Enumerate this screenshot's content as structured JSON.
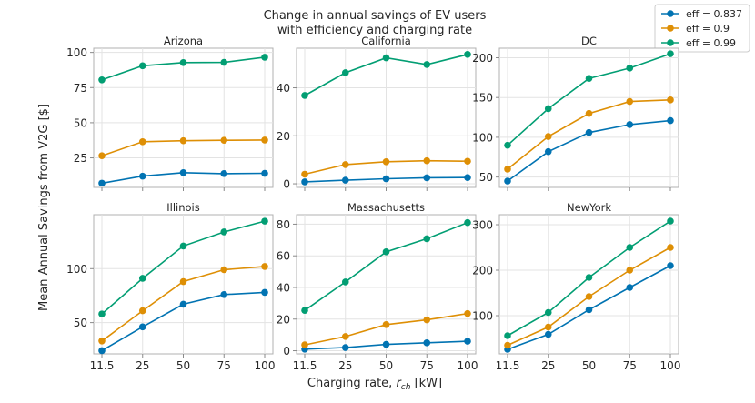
{
  "figure": {
    "title_line1": "Change in annual savings of EV users",
    "title_line2": "with efficiency and charging rate",
    "xlabel_prefix": "Charging rate, ",
    "xlabel_var": "r",
    "xlabel_sub": "ch",
    "xlabel_unit": " [kW]",
    "ylabel": "Mean Annual Savings from V2G [$]"
  },
  "chart_data": {
    "type": "line",
    "x_categories": [
      "11.5",
      "25",
      "50",
      "75",
      "100"
    ],
    "legend": [
      {
        "name": "eff = 0.837",
        "color": "#0173b2"
      },
      {
        "name": "eff = 0.9",
        "color": "#de8f05"
      },
      {
        "name": "eff = 0.99",
        "color": "#029e73"
      }
    ],
    "panels": [
      {
        "title": "Arizona",
        "ylim": [
          4,
          103
        ],
        "yticks": [
          25,
          50,
          75,
          100
        ],
        "series": [
          [
            7,
            12,
            14.5,
            13.8,
            14
          ],
          [
            26.5,
            36.5,
            37.2,
            37.5,
            37.7
          ],
          [
            80.5,
            90.5,
            92.8,
            92.9,
            96.6
          ]
        ]
      },
      {
        "title": "California",
        "ylim": [
          -1.5,
          56.5
        ],
        "yticks": [
          0,
          20,
          40
        ],
        "series": [
          [
            0.8,
            1.5,
            2.1,
            2.5,
            2.6
          ],
          [
            4,
            8,
            9.2,
            9.6,
            9.4
          ],
          [
            36.8,
            46.3,
            52.5,
            49.7,
            53.9
          ]
        ]
      },
      {
        "title": "DC",
        "ylim": [
          37,
          212
        ],
        "yticks": [
          50,
          100,
          150,
          200
        ],
        "series": [
          [
            45,
            82,
            106,
            116,
            121
          ],
          [
            60,
            101,
            130,
            145,
            147
          ],
          [
            90,
            136,
            174,
            187,
            205
          ]
        ]
      },
      {
        "title": "Illinois",
        "ylim": [
          21,
          150
        ],
        "yticks": [
          50,
          100
        ],
        "series": [
          [
            24,
            46,
            67,
            76,
            78
          ],
          [
            33,
            61,
            88,
            99,
            102
          ],
          [
            58,
            91,
            121,
            134,
            144
          ]
        ]
      },
      {
        "title": "Massachusetts",
        "ylim": [
          -2,
          86
        ],
        "yticks": [
          0,
          20,
          40,
          60,
          80
        ],
        "series": [
          [
            1,
            2,
            4,
            5,
            6
          ],
          [
            3.7,
            9,
            16.5,
            19.5,
            23.5
          ],
          [
            25.5,
            43.5,
            62.5,
            70.8,
            81
          ]
        ]
      },
      {
        "title": "NewYork",
        "ylim": [
          16,
          322
        ],
        "yticks": [
          100,
          200,
          300
        ],
        "series": [
          [
            26,
            59,
            113,
            162,
            210
          ],
          [
            35,
            75,
            142,
            200,
            250
          ],
          [
            56,
            107,
            184,
            250,
            308
          ]
        ]
      }
    ]
  }
}
